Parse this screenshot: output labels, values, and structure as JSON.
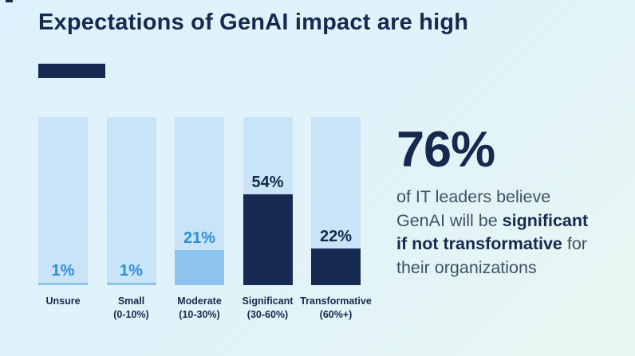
{
  "page": {
    "title": "Expectations of GenAI impact are high"
  },
  "colors": {
    "background_top": "#def2fd",
    "background_bottom": "#e9f7f1",
    "navy": "#16294f",
    "bar_track": "#c9e3f8",
    "bar_fill_light": "#8cc3ef",
    "bar_fill_dark": "#172b52",
    "value_text_light": "#2d8fd8",
    "value_text_dark": "#16294f",
    "body_text": "#3f5063"
  },
  "chart_data": {
    "type": "bar",
    "title": "Expectations of GenAI impact are high",
    "categories": [
      "Unsure",
      "Small",
      "Moderate",
      "Significant",
      "Transformative"
    ],
    "category_ranges": [
      "",
      "(0-10%)",
      "(10-30%)",
      "(30-60%)",
      "(60%+)"
    ],
    "values": [
      1,
      1,
      21,
      54,
      22
    ],
    "value_labels": [
      "1%",
      "1%",
      "21%",
      "54%",
      "22%"
    ],
    "emphasized": [
      false,
      false,
      false,
      true,
      true
    ],
    "ylim": [
      0,
      100
    ],
    "grid": false,
    "legend": "none"
  },
  "callout": {
    "stat": "76%",
    "segments": {
      "s1": "of IT leaders believe",
      "s2": "GenAI will be ",
      "s3": "significant",
      "s4": "if not transformative",
      "s5": " for",
      "s6": "their organizations"
    }
  }
}
